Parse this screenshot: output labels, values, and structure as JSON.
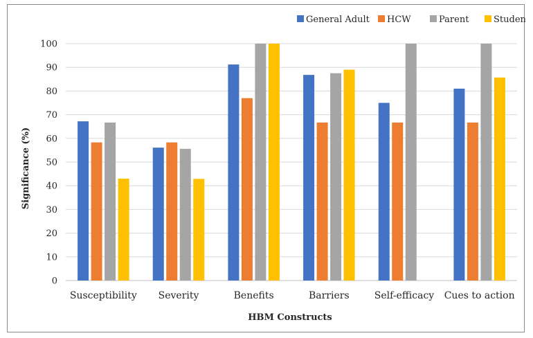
{
  "chart_data": {
    "type": "bar",
    "title": "",
    "xlabel": "HBM Constructs",
    "ylabel": "Significance (%)",
    "ylim": [
      0,
      100
    ],
    "yticks": [
      0,
      10,
      20,
      30,
      40,
      50,
      60,
      70,
      80,
      90,
      100
    ],
    "grid": true,
    "legend_position": "top-right",
    "categories": [
      "Susceptibility",
      "Severity",
      "Benefits",
      "Barriers",
      "Self-efficacy",
      "Cues to action"
    ],
    "series": [
      {
        "name": "General Adult",
        "color": "#4472c4",
        "values": [
          67.2,
          56.1,
          91.2,
          86.8,
          75.0,
          81.0
        ]
      },
      {
        "name": "HCW",
        "color": "#ed7d31",
        "values": [
          58.3,
          58.3,
          77.0,
          66.7,
          66.7,
          66.7
        ]
      },
      {
        "name": "Parent",
        "color": "#a5a5a5",
        "values": [
          66.7,
          55.6,
          100,
          87.5,
          100,
          100
        ]
      },
      {
        "name": "Student",
        "color": "#ffc000",
        "values": [
          43.0,
          42.9,
          100,
          89.0,
          null,
          85.7
        ]
      }
    ]
  }
}
